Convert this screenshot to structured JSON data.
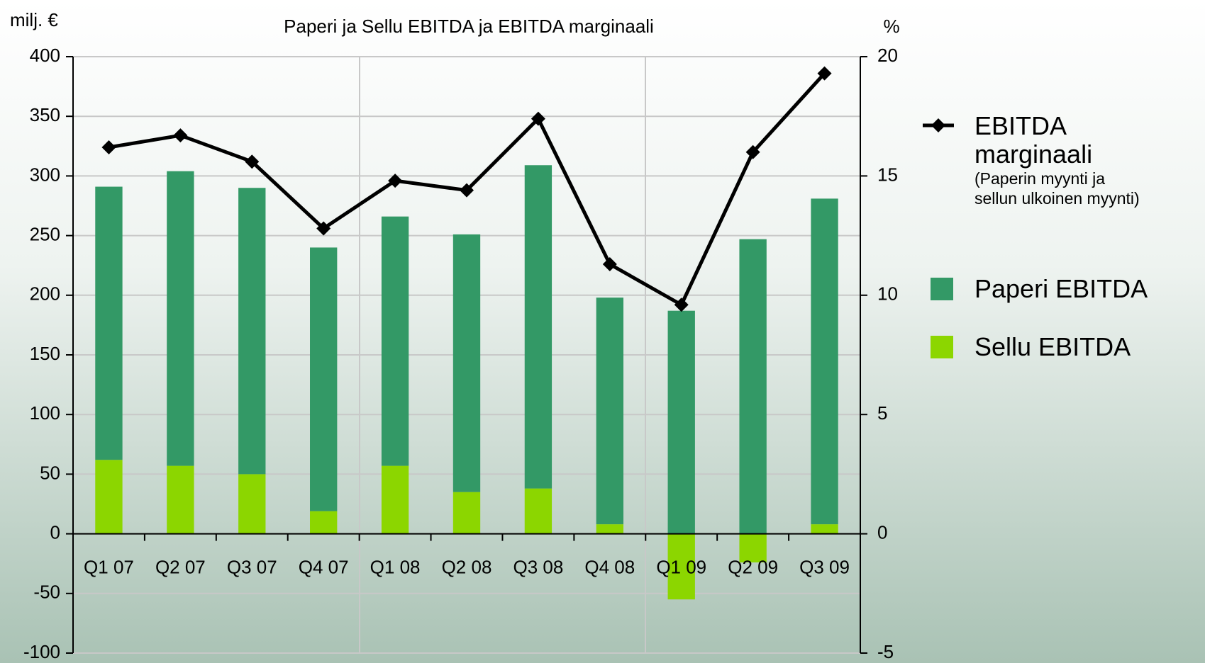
{
  "chart_data": {
    "type": "bar",
    "title": "Paperi ja Sellu EBITDA ja EBITDA marginaali",
    "y_label": "milj. €",
    "y2_label": "%",
    "categories": [
      "Q1 07",
      "Q2 07",
      "Q3 07",
      "Q4 07",
      "Q1 08",
      "Q2 08",
      "Q3 08",
      "Q4 08",
      "Q1 09",
      "Q2 09",
      "Q3 09"
    ],
    "stacked": true,
    "series": [
      {
        "name": "Sellu EBITDA",
        "type": "bar",
        "color": "#8cd600",
        "values": [
          62,
          57,
          50,
          19,
          57,
          35,
          38,
          8,
          -55,
          -24,
          8
        ]
      },
      {
        "name": "Paperi EBITDA",
        "type": "bar",
        "color": "#339966",
        "values": [
          229,
          247,
          240,
          221,
          209,
          216,
          271,
          190,
          187,
          247,
          273
        ]
      },
      {
        "name": "EBITDA marginaali",
        "type": "line",
        "axis": "y2",
        "color": "#000000",
        "note": [
          "(Paperin myynti ja",
          "sellun ulkoinen myynti)"
        ],
        "values": [
          16.2,
          16.7,
          15.6,
          12.8,
          14.8,
          14.4,
          17.4,
          11.3,
          9.6,
          16.0,
          19.3
        ]
      }
    ],
    "ylim": [
      -100,
      400
    ],
    "yticks": [
      -100,
      -50,
      0,
      50,
      100,
      150,
      200,
      250,
      300,
      350,
      400
    ],
    "y2lim": [
      -5,
      20
    ],
    "y2ticks": [
      -5,
      0,
      5,
      10,
      15,
      20
    ],
    "grid": true,
    "legend": "right"
  }
}
